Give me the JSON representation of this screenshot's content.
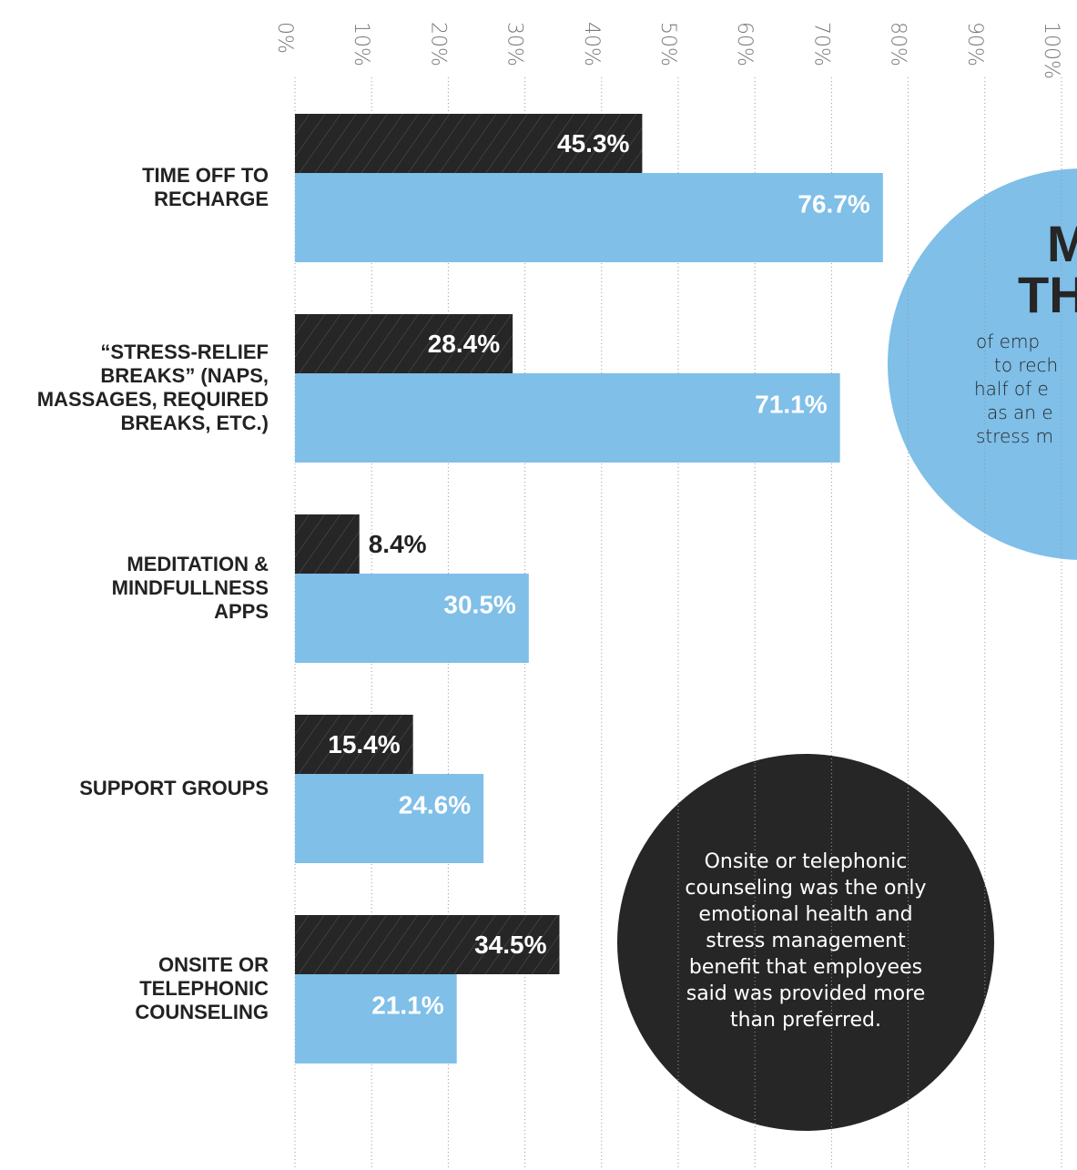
{
  "chart_data": {
    "type": "bar",
    "categories": [
      "TIME OFF TO\nRECHARGE",
      "“STRESS-RELIEF\nBREAKS” (NAPS,\nMASSAGES, REQUIRED\nBREAKS, ETC.)",
      "MEDITATION &\nMINDFULLNESS\nAPPS",
      "SUPPORT GROUPS",
      "ONSITE OR\nTELEPHONIC\nCOUNSELING"
    ],
    "series": [
      {
        "color": "#262626",
        "values": [
          45.3,
          28.4,
          8.4,
          15.4,
          34.5
        ],
        "value_labels": [
          "45.3%",
          "28.4%",
          "8.4%",
          "15.4%",
          "34.5%"
        ]
      },
      {
        "color": "#7fbfe8",
        "values": [
          76.7,
          71.1,
          30.5,
          24.6,
          21.1
        ],
        "value_labels": [
          "76.7%",
          "71.1%",
          "30.5%",
          "24.6%",
          "21.1%"
        ]
      }
    ],
    "xlim": [
      0,
      100
    ],
    "xticks": [
      {
        "value": 0,
        "label": "0%"
      },
      {
        "value": 10,
        "label": "10%"
      },
      {
        "value": 20,
        "label": "20%"
      },
      {
        "value": 30,
        "label": "30%"
      },
      {
        "value": 40,
        "label": "40%"
      },
      {
        "value": 50,
        "label": "50%"
      },
      {
        "value": 60,
        "label": "60%"
      },
      {
        "value": 70,
        "label": "70%"
      },
      {
        "value": 80,
        "label": "80%"
      },
      {
        "value": 90,
        "label": "90%"
      },
      {
        "value": 100,
        "label": "100%"
      }
    ],
    "grid": true,
    "annotations": {
      "blue_circle": {
        "headline": [
          "M",
          "TH"
        ],
        "lines": [
          "of emp",
          "to rech",
          "half of e",
          "as an e",
          "stress m"
        ]
      },
      "dark_circle": "Onsite or telephonic\ncounseling was the only\nemotional health and\nstress management\nbenefit that employees\nsaid was provided more\nthan preferred."
    }
  }
}
